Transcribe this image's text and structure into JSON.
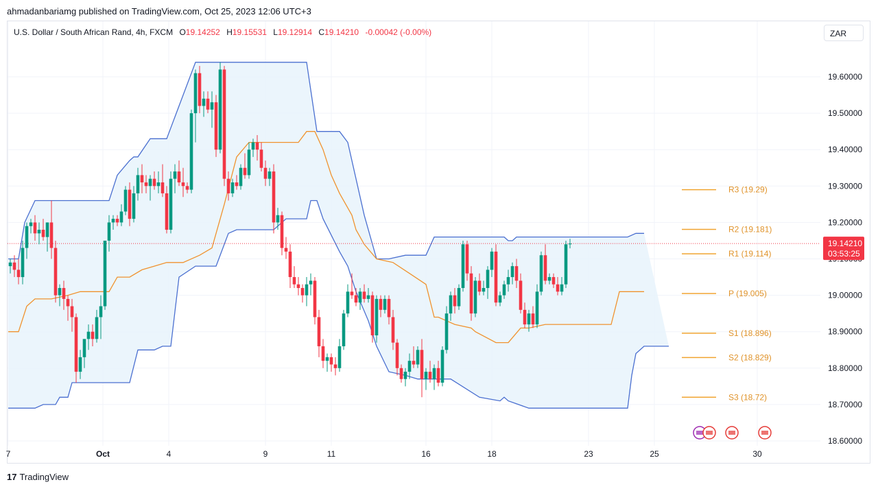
{
  "publish_line": "ahmadanbariamg published on TradingView.com, Oct 25, 2023 12:06 UTC+3",
  "legend": {
    "symbol": "U.S. Dollar / South African Rand, 4h, FXCM",
    "o_label": "O",
    "o": "19.14252",
    "h_label": "H",
    "h": "19.15531",
    "l_label": "L",
    "l": "19.12914",
    "c_label": "C",
    "c": "19.14210",
    "change": "-0.00042 (-0.00%)"
  },
  "currency": "ZAR",
  "footer": {
    "logo": "17",
    "brand": "TradingView"
  },
  "colors": {
    "up": "#089981",
    "down": "#f23645",
    "channel": "#4a6fd0",
    "midline": "#f0922e",
    "pivot": "#f0a430",
    "fill": "#e8f3fb"
  },
  "chart_data": {
    "type": "candlestick",
    "ylim": [
      18.6,
      19.68
    ],
    "y_ticks": [
      "19.60000",
      "19.50000",
      "19.40000",
      "19.30000",
      "19.20000",
      "19.10000",
      "19.00000",
      "18.90000",
      "18.80000",
      "18.70000",
      "18.60000"
    ],
    "x_ticks": [
      {
        "label": "7",
        "i": -0.5
      },
      {
        "label": "Oct",
        "i": 22.5
      },
      {
        "label": "4",
        "i": 38.5
      },
      {
        "label": "9",
        "i": 62
      },
      {
        "label": "11",
        "i": 78
      },
      {
        "label": "16",
        "i": 101
      },
      {
        "label": "18",
        "i": 117
      },
      {
        "label": "23",
        "i": 140.5
      },
      {
        "label": "25",
        "i": 156.5
      },
      {
        "label": "30",
        "i": 181.5
      }
    ],
    "last_price": {
      "value": 19.1421,
      "label": "19.14210",
      "countdown": "03:53:25"
    },
    "pivots": [
      {
        "name": "R3",
        "label": "R3 (19.29)",
        "value": 19.29
      },
      {
        "name": "R2",
        "label": "R2 (19.181)",
        "value": 19.181
      },
      {
        "name": "R1",
        "label": "R1 (19.114)",
        "value": 19.114
      },
      {
        "name": "P",
        "label": "P (19.005)",
        "value": 19.005
      },
      {
        "name": "S1",
        "label": "S1 (18.896)",
        "value": 18.896
      },
      {
        "name": "S2",
        "label": "S2 (18.829)",
        "value": 18.829
      },
      {
        "name": "S3",
        "label": "S3 (18.72)",
        "value": 18.72
      }
    ],
    "candles": [
      [
        19.08,
        19.1,
        19.06,
        19.09
      ],
      [
        19.09,
        19.11,
        19.05,
        19.07
      ],
      [
        19.07,
        19.1,
        19.03,
        19.05
      ],
      [
        19.05,
        19.15,
        19.03,
        19.13
      ],
      [
        19.13,
        19.2,
        19.1,
        19.19
      ],
      [
        19.19,
        19.21,
        19.17,
        19.2
      ],
      [
        19.2,
        19.22,
        19.15,
        19.17
      ],
      [
        19.17,
        19.2,
        19.14,
        19.18
      ],
      [
        19.18,
        19.21,
        19.15,
        19.16
      ],
      [
        19.16,
        19.2,
        19.12,
        19.2
      ],
      [
        19.2,
        19.26,
        19.1,
        19.13
      ],
      [
        19.13,
        19.15,
        18.98,
        19.0
      ],
      [
        19.0,
        19.03,
        18.97,
        19.02
      ],
      [
        19.02,
        19.04,
        18.96,
        18.99
      ],
      [
        18.99,
        19.0,
        18.93,
        18.97
      ],
      [
        18.97,
        18.99,
        18.9,
        18.94
      ],
      [
        18.94,
        18.95,
        18.76,
        18.79
      ],
      [
        18.79,
        18.85,
        18.77,
        18.83
      ],
      [
        18.83,
        18.88,
        18.8,
        18.88
      ],
      [
        18.88,
        18.92,
        18.85,
        18.9
      ],
      [
        18.9,
        18.92,
        18.86,
        18.88
      ],
      [
        18.88,
        18.96,
        18.87,
        18.94
      ],
      [
        18.94,
        19.0,
        18.88,
        18.97
      ],
      [
        18.97,
        19.15,
        18.96,
        19.15
      ],
      [
        19.15,
        19.22,
        19.12,
        19.2
      ],
      [
        19.2,
        19.22,
        19.18,
        19.21
      ],
      [
        19.21,
        19.22,
        19.19,
        19.2
      ],
      [
        19.2,
        19.25,
        19.19,
        19.23
      ],
      [
        19.23,
        19.3,
        19.22,
        19.29
      ],
      [
        19.29,
        19.31,
        19.19,
        19.21
      ],
      [
        19.21,
        19.3,
        19.2,
        19.28
      ],
      [
        19.28,
        19.35,
        19.26,
        19.33
      ],
      [
        19.33,
        19.36,
        19.28,
        19.31
      ],
      [
        19.31,
        19.33,
        19.28,
        19.3
      ],
      [
        19.3,
        19.33,
        19.26,
        19.32
      ],
      [
        19.32,
        19.34,
        19.29,
        19.3
      ],
      [
        19.3,
        19.34,
        19.28,
        19.31
      ],
      [
        19.31,
        19.36,
        19.27,
        19.28
      ],
      [
        19.28,
        19.3,
        19.17,
        19.18
      ],
      [
        19.18,
        19.34,
        19.17,
        19.32
      ],
      [
        19.32,
        19.36,
        19.28,
        19.34
      ],
      [
        19.34,
        19.37,
        19.3,
        19.31
      ],
      [
        19.31,
        19.35,
        19.27,
        19.3
      ],
      [
        19.3,
        19.31,
        19.28,
        19.29
      ],
      [
        19.29,
        19.51,
        19.28,
        19.5
      ],
      [
        19.5,
        19.62,
        19.42,
        19.61
      ],
      [
        19.61,
        19.63,
        19.5,
        19.52
      ],
      [
        19.52,
        19.56,
        19.49,
        19.54
      ],
      [
        19.54,
        19.56,
        19.5,
        19.51
      ],
      [
        19.51,
        19.56,
        19.46,
        19.53
      ],
      [
        19.53,
        19.55,
        19.38,
        19.4
      ],
      [
        19.4,
        19.64,
        19.39,
        19.62
      ],
      [
        19.62,
        19.63,
        19.3,
        19.32
      ],
      [
        19.32,
        19.34,
        19.26,
        19.28
      ],
      [
        19.28,
        19.32,
        19.27,
        19.31
      ],
      [
        19.31,
        19.33,
        19.29,
        19.3
      ],
      [
        19.3,
        19.36,
        19.29,
        19.35
      ],
      [
        19.35,
        19.39,
        19.32,
        19.33
      ],
      [
        19.33,
        19.42,
        19.32,
        19.4
      ],
      [
        19.4,
        19.43,
        19.38,
        19.42
      ],
      [
        19.42,
        19.44,
        19.37,
        19.4
      ],
      [
        19.4,
        19.42,
        19.34,
        19.35
      ],
      [
        19.35,
        19.37,
        19.3,
        19.32
      ],
      [
        19.32,
        19.35,
        19.3,
        19.34
      ],
      [
        19.34,
        19.36,
        19.17,
        19.2
      ],
      [
        19.2,
        19.24,
        19.18,
        19.22
      ],
      [
        19.22,
        19.23,
        19.11,
        19.13
      ],
      [
        19.13,
        19.16,
        19.1,
        19.12
      ],
      [
        19.12,
        19.14,
        19.02,
        19.05
      ],
      [
        19.05,
        19.08,
        19.02,
        19.03
      ],
      [
        19.03,
        19.05,
        19.0,
        19.02
      ],
      [
        19.02,
        19.03,
        18.98,
        19.0
      ],
      [
        19.0,
        19.05,
        18.97,
        19.03
      ],
      [
        19.03,
        19.06,
        19.0,
        19.04
      ],
      [
        19.04,
        19.05,
        18.92,
        18.94
      ],
      [
        18.94,
        18.96,
        18.83,
        18.86
      ],
      [
        18.86,
        18.88,
        18.8,
        18.82
      ],
      [
        18.82,
        18.84,
        18.79,
        18.83
      ],
      [
        18.83,
        18.84,
        18.79,
        18.81
      ],
      [
        18.81,
        18.83,
        18.78,
        18.8
      ],
      [
        18.8,
        18.88,
        18.79,
        18.86
      ],
      [
        18.86,
        18.96,
        18.85,
        18.95
      ],
      [
        18.95,
        19.03,
        18.94,
        19.01
      ],
      [
        19.01,
        19.06,
        18.99,
        19.0
      ],
      [
        19.0,
        19.02,
        18.97,
        18.98
      ],
      [
        18.98,
        19.02,
        18.96,
        19.01
      ],
      [
        19.01,
        19.03,
        18.98,
        18.99
      ],
      [
        18.99,
        19.02,
        18.98,
        19.0
      ],
      [
        19.0,
        19.01,
        18.87,
        18.89
      ],
      [
        18.89,
        19.0,
        18.87,
        18.99
      ],
      [
        18.99,
        19.0,
        18.94,
        18.96
      ],
      [
        18.96,
        19.0,
        18.95,
        18.99
      ],
      [
        18.99,
        19.0,
        18.92,
        18.94
      ],
      [
        18.94,
        18.96,
        18.85,
        18.87
      ],
      [
        18.87,
        18.88,
        18.78,
        18.8
      ],
      [
        18.8,
        18.81,
        18.76,
        18.77
      ],
      [
        18.77,
        18.8,
        18.75,
        18.79
      ],
      [
        18.79,
        18.84,
        18.77,
        18.82
      ],
      [
        18.82,
        18.86,
        18.8,
        18.81
      ],
      [
        18.81,
        18.86,
        18.8,
        18.85
      ],
      [
        18.85,
        18.88,
        18.72,
        18.77
      ],
      [
        18.77,
        18.8,
        18.74,
        18.79
      ],
      [
        18.79,
        18.82,
        18.76,
        18.77
      ],
      [
        18.77,
        18.81,
        18.74,
        18.8
      ],
      [
        18.8,
        18.82,
        18.75,
        18.76
      ],
      [
        18.76,
        18.86,
        18.75,
        18.85
      ],
      [
        18.85,
        18.97,
        18.84,
        18.95
      ],
      [
        18.95,
        19.01,
        18.93,
        19.0
      ],
      [
        19.0,
        19.02,
        18.95,
        18.97
      ],
      [
        18.97,
        19.03,
        18.96,
        19.02
      ],
      [
        19.02,
        19.15,
        19.01,
        19.14
      ],
      [
        19.14,
        19.15,
        19.04,
        19.06
      ],
      [
        19.06,
        19.08,
        18.93,
        18.95
      ],
      [
        18.95,
        19.05,
        18.94,
        19.04
      ],
      [
        19.04,
        19.06,
        19.0,
        19.01
      ],
      [
        19.01,
        19.04,
        19.0,
        19.02
      ],
      [
        19.02,
        19.08,
        18.99,
        19.07
      ],
      [
        19.07,
        19.13,
        19.05,
        19.12
      ],
      [
        19.12,
        19.14,
        18.97,
        18.98
      ],
      [
        18.98,
        19.01,
        18.97,
        19.0
      ],
      [
        19.0,
        19.04,
        18.99,
        19.03
      ],
      [
        19.03,
        19.07,
        19.01,
        19.05
      ],
      [
        19.05,
        19.09,
        19.03,
        19.08
      ],
      [
        19.08,
        19.1,
        19.02,
        19.04
      ],
      [
        19.04,
        19.06,
        18.95,
        18.96
      ],
      [
        18.96,
        18.98,
        18.91,
        18.92
      ],
      [
        18.92,
        18.96,
        18.9,
        18.95
      ],
      [
        18.95,
        18.97,
        18.91,
        18.92
      ],
      [
        18.92,
        19.03,
        18.91,
        19.01
      ],
      [
        19.01,
        19.12,
        19.0,
        19.11
      ],
      [
        19.11,
        19.14,
        19.03,
        19.04
      ],
      [
        19.04,
        19.06,
        19.03,
        19.05
      ],
      [
        19.05,
        19.06,
        19.02,
        19.03
      ],
      [
        19.03,
        19.05,
        19.0,
        19.01
      ],
      [
        19.01,
        19.05,
        19.0,
        19.03
      ],
      [
        19.03,
        19.15,
        19.02,
        19.14
      ],
      [
        19.14,
        19.155,
        19.129,
        19.142
      ]
    ],
    "channel_upper": [
      [
        -0.5,
        19.1
      ],
      [
        2,
        19.1
      ],
      [
        3.5,
        19.2
      ],
      [
        6,
        19.26
      ],
      [
        10,
        19.26
      ],
      [
        18,
        19.26
      ],
      [
        24,
        19.26
      ],
      [
        26,
        19.33
      ],
      [
        29,
        19.37
      ],
      [
        30,
        19.38
      ],
      [
        31,
        19.38
      ],
      [
        34,
        19.43
      ],
      [
        38,
        19.43
      ],
      [
        45,
        19.64
      ],
      [
        50,
        19.64
      ],
      [
        72,
        19.64
      ],
      [
        74.5,
        19.45
      ],
      [
        80,
        19.45
      ],
      [
        82,
        19.42
      ],
      [
        86,
        19.22
      ],
      [
        89,
        19.1
      ],
      [
        92,
        19.1
      ],
      [
        96,
        19.11
      ],
      [
        97,
        19.11
      ],
      [
        101,
        19.11
      ],
      [
        103,
        19.16
      ],
      [
        103.5,
        19.16
      ],
      [
        110,
        19.16
      ],
      [
        120,
        19.16
      ],
      [
        121,
        19.15
      ],
      [
        122,
        19.15
      ],
      [
        123,
        19.16
      ],
      [
        124,
        19.16
      ],
      [
        125,
        19.16
      ],
      [
        133,
        19.16
      ],
      [
        146,
        19.16
      ],
      [
        148,
        19.16
      ],
      [
        150,
        19.16
      ],
      [
        152,
        19.17
      ],
      [
        154,
        19.17
      ]
    ],
    "channel_lower": [
      [
        -0.5,
        18.69
      ],
      [
        6,
        18.69
      ],
      [
        8,
        18.7
      ],
      [
        11,
        18.7
      ],
      [
        12,
        18.72
      ],
      [
        14,
        18.72
      ],
      [
        15,
        18.76
      ],
      [
        19,
        18.76
      ],
      [
        25,
        18.76
      ],
      [
        29,
        18.76
      ],
      [
        31,
        18.85
      ],
      [
        35,
        18.85
      ],
      [
        37,
        18.86
      ],
      [
        39,
        18.86
      ],
      [
        41,
        19.05
      ],
      [
        45,
        19.08
      ],
      [
        50,
        19.08
      ],
      [
        53,
        19.17
      ],
      [
        55,
        19.18
      ],
      [
        64,
        19.18
      ],
      [
        67,
        19.21
      ],
      [
        72,
        19.21
      ],
      [
        73,
        19.26
      ],
      [
        74.5,
        19.26
      ],
      [
        76,
        19.21
      ],
      [
        80,
        19.12
      ],
      [
        82,
        19.08
      ],
      [
        84,
        19.01
      ],
      [
        87,
        18.93
      ],
      [
        89,
        18.86
      ],
      [
        92,
        18.79
      ],
      [
        96,
        18.78
      ],
      [
        99,
        18.77
      ],
      [
        100,
        18.77
      ],
      [
        102,
        18.77
      ],
      [
        104,
        18.77
      ],
      [
        105,
        18.77
      ],
      [
        107,
        18.77
      ],
      [
        114,
        18.72
      ],
      [
        119,
        18.71
      ],
      [
        120,
        18.72
      ],
      [
        121,
        18.71
      ],
      [
        126,
        18.69
      ],
      [
        131,
        18.69
      ],
      [
        138,
        18.69
      ],
      [
        140,
        18.69
      ],
      [
        144,
        18.69
      ],
      [
        148,
        18.69
      ],
      [
        150,
        18.69
      ],
      [
        151,
        18.78
      ],
      [
        152,
        18.84
      ],
      [
        154,
        18.86
      ],
      [
        156,
        18.86
      ],
      [
        158,
        18.86
      ],
      [
        160,
        18.86
      ]
    ],
    "midline": [
      [
        -0.5,
        18.9
      ],
      [
        2,
        18.9
      ],
      [
        4,
        18.97
      ],
      [
        6,
        18.99
      ],
      [
        10,
        18.99
      ],
      [
        14,
        19.0
      ],
      [
        17,
        19.01
      ],
      [
        20,
        19.01
      ],
      [
        22,
        19.01
      ],
      [
        24,
        19.01
      ],
      [
        26,
        19.05
      ],
      [
        29,
        19.05
      ],
      [
        32,
        19.07
      ],
      [
        35,
        19.08
      ],
      [
        38,
        19.09
      ],
      [
        42,
        19.09
      ],
      [
        46,
        19.11
      ],
      [
        49,
        19.13
      ],
      [
        50,
        19.17
      ],
      [
        52,
        19.25
      ],
      [
        55,
        19.38
      ],
      [
        58,
        19.42
      ],
      [
        62,
        19.42
      ],
      [
        70,
        19.42
      ],
      [
        72,
        19.45
      ],
      [
        74,
        19.45
      ],
      [
        76,
        19.4
      ],
      [
        78,
        19.33
      ],
      [
        80,
        19.28
      ],
      [
        83,
        19.22
      ],
      [
        84,
        19.18
      ],
      [
        86,
        19.14
      ],
      [
        89,
        19.1
      ],
      [
        93,
        19.09
      ],
      [
        97,
        19.06
      ],
      [
        101,
        19.03
      ],
      [
        103,
        18.94
      ],
      [
        104,
        18.94
      ],
      [
        106,
        18.93
      ],
      [
        108,
        18.92
      ],
      [
        112,
        18.91
      ],
      [
        113,
        18.9
      ],
      [
        118,
        18.87
      ],
      [
        121,
        18.87
      ],
      [
        124,
        18.91
      ],
      [
        126,
        18.91
      ],
      [
        130,
        18.92
      ],
      [
        133,
        18.92
      ],
      [
        138,
        18.92
      ],
      [
        140,
        18.92
      ],
      [
        144,
        18.92
      ],
      [
        146,
        18.92
      ],
      [
        148,
        19.01
      ],
      [
        150,
        19.01
      ],
      [
        152,
        19.01
      ],
      [
        154,
        19.01
      ]
    ]
  }
}
